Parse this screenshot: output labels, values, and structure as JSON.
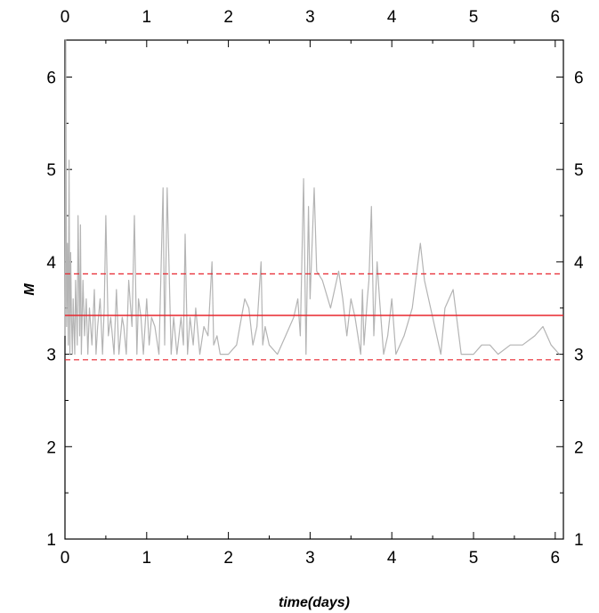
{
  "chart_data": {
    "type": "line",
    "title": "",
    "xlabel": "time(days)",
    "ylabel": "M",
    "xlim": [
      0,
      6.1
    ],
    "ylim": [
      1,
      6.4
    ],
    "x_ticks": [
      0,
      1,
      2,
      3,
      4,
      5,
      6
    ],
    "y_ticks": [
      1,
      2,
      3,
      4,
      5,
      6
    ],
    "grid": false,
    "legend": "none",
    "series": [
      {
        "color": "#b4b4b4",
        "style": "solid",
        "x": [
          0.0,
          0.01,
          0.02,
          0.03,
          0.04,
          0.05,
          0.06,
          0.07,
          0.08,
          0.09,
          0.1,
          0.12,
          0.13,
          0.15,
          0.16,
          0.18,
          0.19,
          0.2,
          0.22,
          0.24,
          0.26,
          0.28,
          0.3,
          0.33,
          0.36,
          0.38,
          0.4,
          0.43,
          0.46,
          0.48,
          0.5,
          0.53,
          0.56,
          0.6,
          0.63,
          0.66,
          0.7,
          0.72,
          0.75,
          0.78,
          0.82,
          0.85,
          0.88,
          0.9,
          0.93,
          0.96,
          1.0,
          1.03,
          1.06,
          1.1,
          1.15,
          1.2,
          1.22,
          1.25,
          1.3,
          1.33,
          1.37,
          1.42,
          1.45,
          1.47,
          1.5,
          1.53,
          1.57,
          1.6,
          1.65,
          1.7,
          1.75,
          1.8,
          1.82,
          1.86,
          1.9,
          2.0,
          2.1,
          2.2,
          2.25,
          2.3,
          2.35,
          2.4,
          2.42,
          2.45,
          2.5,
          2.6,
          2.7,
          2.8,
          2.85,
          2.88,
          2.92,
          2.95,
          2.98,
          3.0,
          3.05,
          3.08,
          3.15,
          3.25,
          3.35,
          3.4,
          3.45,
          3.5,
          3.55,
          3.62,
          3.64,
          3.66,
          3.7,
          3.72,
          3.75,
          3.78,
          3.82,
          3.85,
          3.9,
          3.95,
          4.0,
          4.05,
          4.1,
          4.15,
          4.25,
          4.35,
          4.4,
          4.5,
          4.6,
          4.65,
          4.75,
          4.85,
          4.95,
          5.0,
          5.1,
          5.2,
          5.3,
          5.45,
          5.6,
          5.75,
          5.85,
          5.95,
          6.05
        ],
        "y": [
          3.2,
          6.4,
          3.3,
          4.2,
          3.1,
          5.1,
          3.0,
          4.1,
          3.4,
          3.0,
          3.6,
          3.0,
          3.8,
          3.1,
          4.5,
          3.2,
          4.4,
          3.0,
          3.8,
          3.2,
          3.6,
          3.0,
          3.5,
          3.1,
          3.7,
          3.0,
          3.3,
          3.6,
          3.0,
          3.5,
          4.5,
          3.2,
          3.4,
          3.0,
          3.7,
          3.0,
          3.4,
          3.3,
          3.0,
          3.8,
          3.3,
          4.5,
          3.0,
          3.6,
          3.4,
          3.0,
          3.6,
          3.1,
          3.4,
          3.3,
          3.0,
          4.8,
          3.1,
          4.8,
          3.0,
          3.4,
          3.0,
          3.4,
          3.1,
          4.3,
          3.0,
          3.4,
          3.1,
          3.5,
          3.0,
          3.3,
          3.2,
          4.0,
          3.1,
          3.2,
          3.0,
          3.0,
          3.1,
          3.6,
          3.5,
          3.1,
          3.3,
          4.0,
          3.1,
          3.3,
          3.1,
          3.0,
          3.2,
          3.4,
          3.6,
          3.2,
          4.9,
          3.0,
          4.6,
          3.6,
          4.8,
          3.9,
          3.8,
          3.5,
          3.9,
          3.6,
          3.2,
          3.6,
          3.4,
          3.0,
          3.7,
          3.1,
          3.6,
          3.8,
          4.6,
          3.2,
          4.0,
          3.6,
          3.0,
          3.2,
          3.6,
          3.0,
          3.1,
          3.2,
          3.5,
          4.2,
          3.8,
          3.4,
          3.0,
          3.5,
          3.7,
          3.0,
          3.0,
          3.0,
          3.1,
          3.1,
          3.0,
          3.1,
          3.1,
          3.2,
          3.3,
          3.1,
          3.0
        ]
      },
      {
        "color": "#e8262f",
        "style": "solid",
        "x": [
          0,
          6.1
        ],
        "y": [
          3.42,
          3.42
        ]
      },
      {
        "color": "#e8262f",
        "style": "dashed",
        "x": [
          0,
          6.1
        ],
        "y": [
          3.87,
          3.87
        ]
      },
      {
        "color": "#e8262f",
        "style": "dashed",
        "x": [
          0,
          6.1
        ],
        "y": [
          2.94,
          2.94
        ]
      }
    ]
  }
}
